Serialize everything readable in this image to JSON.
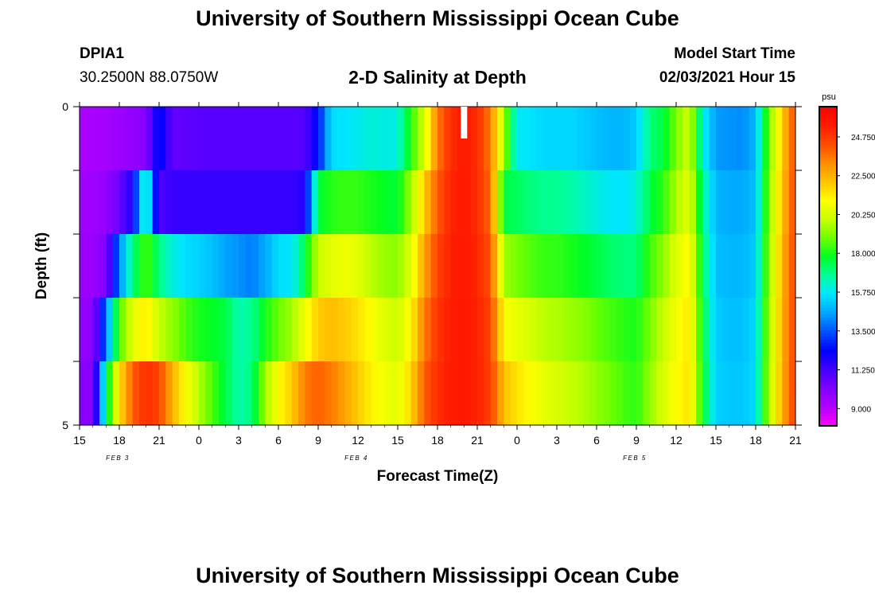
{
  "header": {
    "title": "University of Southern Mississippi Ocean Cube",
    "station_id": "DPIA1",
    "station_coords": "30.2500N 88.0750W",
    "plot_title": "2-D Salinity at Depth",
    "start_label": "Model Start Time",
    "start_value": "02/03/2021 Hour 15"
  },
  "footer": {
    "title": "University of Southern Mississippi Ocean Cube"
  },
  "chart_data": {
    "type": "heatmap",
    "title": "2-D Salinity at Depth",
    "xlabel": "Forecast Time(Z)",
    "ylabel": "Depth (ft)",
    "x_tick_labels": [
      "15",
      "18",
      "21",
      "0",
      "3",
      "6",
      "9",
      "12",
      "15",
      "18",
      "21",
      "0",
      "3",
      "6",
      "9",
      "12",
      "15",
      "18",
      "21"
    ],
    "date_labels": [
      {
        "label": "FEB 3",
        "tick_index": 1
      },
      {
        "label": "FEB 4",
        "tick_index": 7
      },
      {
        "label": "FEB 5",
        "tick_index": 14
      }
    ],
    "y_tick_labels": [
      "0",
      "5"
    ],
    "ylim": [
      0,
      5
    ],
    "x_range_hours": [
      0,
      54
    ],
    "units": "psu",
    "colorbar": {
      "label": "psu",
      "ticks": [
        "24.750",
        "22.500",
        "20.250",
        "18.000",
        "15.750",
        "13.500",
        "11.250",
        "9.000"
      ],
      "range": [
        8.0,
        26.5
      ],
      "colors": [
        "#ff00ff",
        "#b400ff",
        "#7f00ff",
        "#4500ff",
        "#0000ff",
        "#0050ff",
        "#00a6ff",
        "#00e5ff",
        "#00ff9c",
        "#00ff22",
        "#6dff00",
        "#c8ff00",
        "#ffff00",
        "#ffc400",
        "#ff8c00",
        "#ff4b00",
        "#ff1a00",
        "#ff0000"
      ]
    },
    "current_time_hour": 29,
    "depth_levels_ft": [
      0.25,
      0.75,
      1.25,
      1.75,
      2.25,
      2.75,
      3.25,
      3.75,
      4.25,
      4.75
    ],
    "time_keys_hours": [
      0,
      1,
      2,
      3,
      4,
      5,
      6,
      7,
      8,
      9,
      10,
      11,
      12,
      13,
      14,
      15,
      16,
      17,
      18,
      19,
      20,
      21,
      22,
      23,
      24,
      25,
      26,
      27,
      28,
      29,
      30,
      31,
      32,
      33,
      34,
      35,
      36,
      37,
      38,
      39,
      40,
      41,
      42,
      43,
      44,
      45,
      46,
      47,
      48,
      49,
      50,
      51,
      52,
      53,
      54
    ],
    "salinity_psu": [
      [
        9.3,
        9.3,
        9.4,
        9.6,
        9.8,
        10.0,
        12.7,
        10.7,
        10.8,
        10.9,
        10.9,
        10.9,
        10.9,
        10.9,
        10.9,
        10.9,
        10.9,
        11.0,
        12.5,
        15.5,
        15.6,
        15.8,
        16.1,
        15.9,
        16.0,
        18.2,
        20.3,
        23.5,
        25.0,
        25.5,
        25.0,
        23.5,
        19.5,
        15.8,
        15.6,
        15.4,
        15.4,
        15.4,
        15.2,
        15.0,
        14.8,
        14.8,
        15.2,
        17.0,
        17.5,
        19.0,
        20.2,
        16.0,
        14.4,
        14.3,
        14.2,
        14.8,
        19.0,
        22.0,
        24.4
      ],
      [
        9.3,
        9.3,
        9.4,
        9.6,
        9.8,
        10.0,
        12.7,
        10.7,
        10.8,
        10.9,
        10.9,
        10.9,
        10.9,
        10.9,
        10.9,
        10.9,
        10.9,
        11.0,
        12.5,
        15.5,
        15.6,
        15.8,
        16.1,
        15.9,
        16.0,
        18.2,
        20.3,
        23.5,
        25.0,
        25.5,
        25.0,
        23.5,
        19.5,
        15.8,
        15.6,
        15.4,
        15.4,
        15.4,
        15.2,
        15.0,
        14.8,
        14.8,
        15.2,
        17.0,
        17.5,
        19.0,
        20.2,
        16.0,
        14.4,
        14.3,
        14.2,
        14.8,
        19.0,
        22.0,
        24.4
      ],
      [
        9.5,
        9.5,
        9.8,
        10.5,
        12.0,
        17.0,
        11.0,
        11.5,
        11.5,
        11.5,
        11.5,
        11.5,
        11.5,
        11.5,
        11.5,
        11.5,
        11.5,
        11.8,
        17.5,
        18.2,
        18.3,
        18.3,
        18.0,
        17.8,
        17.6,
        19.5,
        22.0,
        24.0,
        25.2,
        25.5,
        25.0,
        23.8,
        17.5,
        17.3,
        17.0,
        16.8,
        16.8,
        16.6,
        16.3,
        16.0,
        15.7,
        15.6,
        16.0,
        17.5,
        18.2,
        19.6,
        20.6,
        16.8,
        14.8,
        14.6,
        14.6,
        15.0,
        19.2,
        22.2,
        24.5
      ],
      [
        9.5,
        9.5,
        9.8,
        10.5,
        12.0,
        17.0,
        11.0,
        11.5,
        11.5,
        11.5,
        11.5,
        11.5,
        11.5,
        11.5,
        11.5,
        11.5,
        11.5,
        11.8,
        17.5,
        18.2,
        18.3,
        18.3,
        18.0,
        17.8,
        17.6,
        19.5,
        22.0,
        24.0,
        25.2,
        25.5,
        25.0,
        23.8,
        17.5,
        17.3,
        17.0,
        16.8,
        16.8,
        16.6,
        16.3,
        16.0,
        15.7,
        15.6,
        16.0,
        17.5,
        18.2,
        19.6,
        20.6,
        16.8,
        14.8,
        14.6,
        14.6,
        15.0,
        19.2,
        22.2,
        24.5
      ],
      [
        9.6,
        9.6,
        10.2,
        14.0,
        17.0,
        18.6,
        17.0,
        16.0,
        15.5,
        15.3,
        15.0,
        14.5,
        14.3,
        14.0,
        14.6,
        15.5,
        15.6,
        17.5,
        20.0,
        20.5,
        20.8,
        20.5,
        19.8,
        19.4,
        19.2,
        20.5,
        22.8,
        24.5,
        25.3,
        25.5,
        25.2,
        24.2,
        19.5,
        19.0,
        18.6,
        18.3,
        18.3,
        18.0,
        17.8,
        17.5,
        17.2,
        17.0,
        17.0,
        18.4,
        19.2,
        20.4,
        21.2,
        17.3,
        15.0,
        14.8,
        14.8,
        15.2,
        19.4,
        22.4,
        24.6
      ],
      [
        9.6,
        9.6,
        10.2,
        14.0,
        17.0,
        18.6,
        17.0,
        16.0,
        15.5,
        15.3,
        15.0,
        14.5,
        14.3,
        14.0,
        14.6,
        15.5,
        15.6,
        17.5,
        20.0,
        20.5,
        20.8,
        20.5,
        19.8,
        19.4,
        19.2,
        20.5,
        22.8,
        24.5,
        25.3,
        25.5,
        25.2,
        24.2,
        19.5,
        19.0,
        18.6,
        18.3,
        18.3,
        18.0,
        17.8,
        17.5,
        17.2,
        17.0,
        17.0,
        18.4,
        19.2,
        20.4,
        21.2,
        17.3,
        15.0,
        14.8,
        14.8,
        15.2,
        19.4,
        22.4,
        24.6
      ],
      [
        9.8,
        9.8,
        14.0,
        18.5,
        20.5,
        21.5,
        20.0,
        19.3,
        18.5,
        18.0,
        17.8,
        17.5,
        16.5,
        16.8,
        18.0,
        18.8,
        19.5,
        20.8,
        22.0,
        22.3,
        22.0,
        21.6,
        21.0,
        20.4,
        20.0,
        21.2,
        23.5,
        24.8,
        25.4,
        25.5,
        25.3,
        24.5,
        21.0,
        20.6,
        20.2,
        19.8,
        19.7,
        19.4,
        19.2,
        18.8,
        18.5,
        18.2,
        18.0,
        19.0,
        20.0,
        20.8,
        21.5,
        17.6,
        15.2,
        15.0,
        15.0,
        15.4,
        19.6,
        22.5,
        24.6
      ],
      [
        9.8,
        9.8,
        14.0,
        18.5,
        20.5,
        21.5,
        20.0,
        19.3,
        18.5,
        18.0,
        17.8,
        17.5,
        16.5,
        16.8,
        18.0,
        18.8,
        19.5,
        20.8,
        22.0,
        22.3,
        22.0,
        21.6,
        21.0,
        20.4,
        20.0,
        21.2,
        23.5,
        24.8,
        25.4,
        25.5,
        25.3,
        24.5,
        21.0,
        20.6,
        20.2,
        19.8,
        19.7,
        19.4,
        19.2,
        18.8,
        18.5,
        18.2,
        18.0,
        19.0,
        20.0,
        20.8,
        21.5,
        17.6,
        15.2,
        15.0,
        15.0,
        15.4,
        19.6,
        22.5,
        24.6
      ],
      [
        10.0,
        10.0,
        17.0,
        21.5,
        24.0,
        25.0,
        24.5,
        22.5,
        21.0,
        19.8,
        18.5,
        17.5,
        16.5,
        17.0,
        19.5,
        21.0,
        22.0,
        23.5,
        24.0,
        23.5,
        22.8,
        22.0,
        21.3,
        20.8,
        20.5,
        21.8,
        24.0,
        25.0,
        25.4,
        25.5,
        25.3,
        24.6,
        22.2,
        21.6,
        21.0,
        20.6,
        20.3,
        20.0,
        19.7,
        19.3,
        18.9,
        18.5,
        18.2,
        19.3,
        20.3,
        21.0,
        21.6,
        17.8,
        15.3,
        15.1,
        15.1,
        15.5,
        19.7,
        22.6,
        24.7
      ],
      [
        10.0,
        10.0,
        17.0,
        21.5,
        24.0,
        25.0,
        24.5,
        22.5,
        21.0,
        19.8,
        18.5,
        17.5,
        16.5,
        17.0,
        19.5,
        21.0,
        22.0,
        23.5,
        24.0,
        23.5,
        22.8,
        22.0,
        21.3,
        20.8,
        20.5,
        21.8,
        24.0,
        25.0,
        25.4,
        25.5,
        25.3,
        24.6,
        22.2,
        21.6,
        21.0,
        20.6,
        20.3,
        20.0,
        19.7,
        19.3,
        18.9,
        18.5,
        18.2,
        19.3,
        20.3,
        21.0,
        21.6,
        17.8,
        15.3,
        15.1,
        15.1,
        15.5,
        19.7,
        22.6,
        24.7
      ]
    ]
  }
}
